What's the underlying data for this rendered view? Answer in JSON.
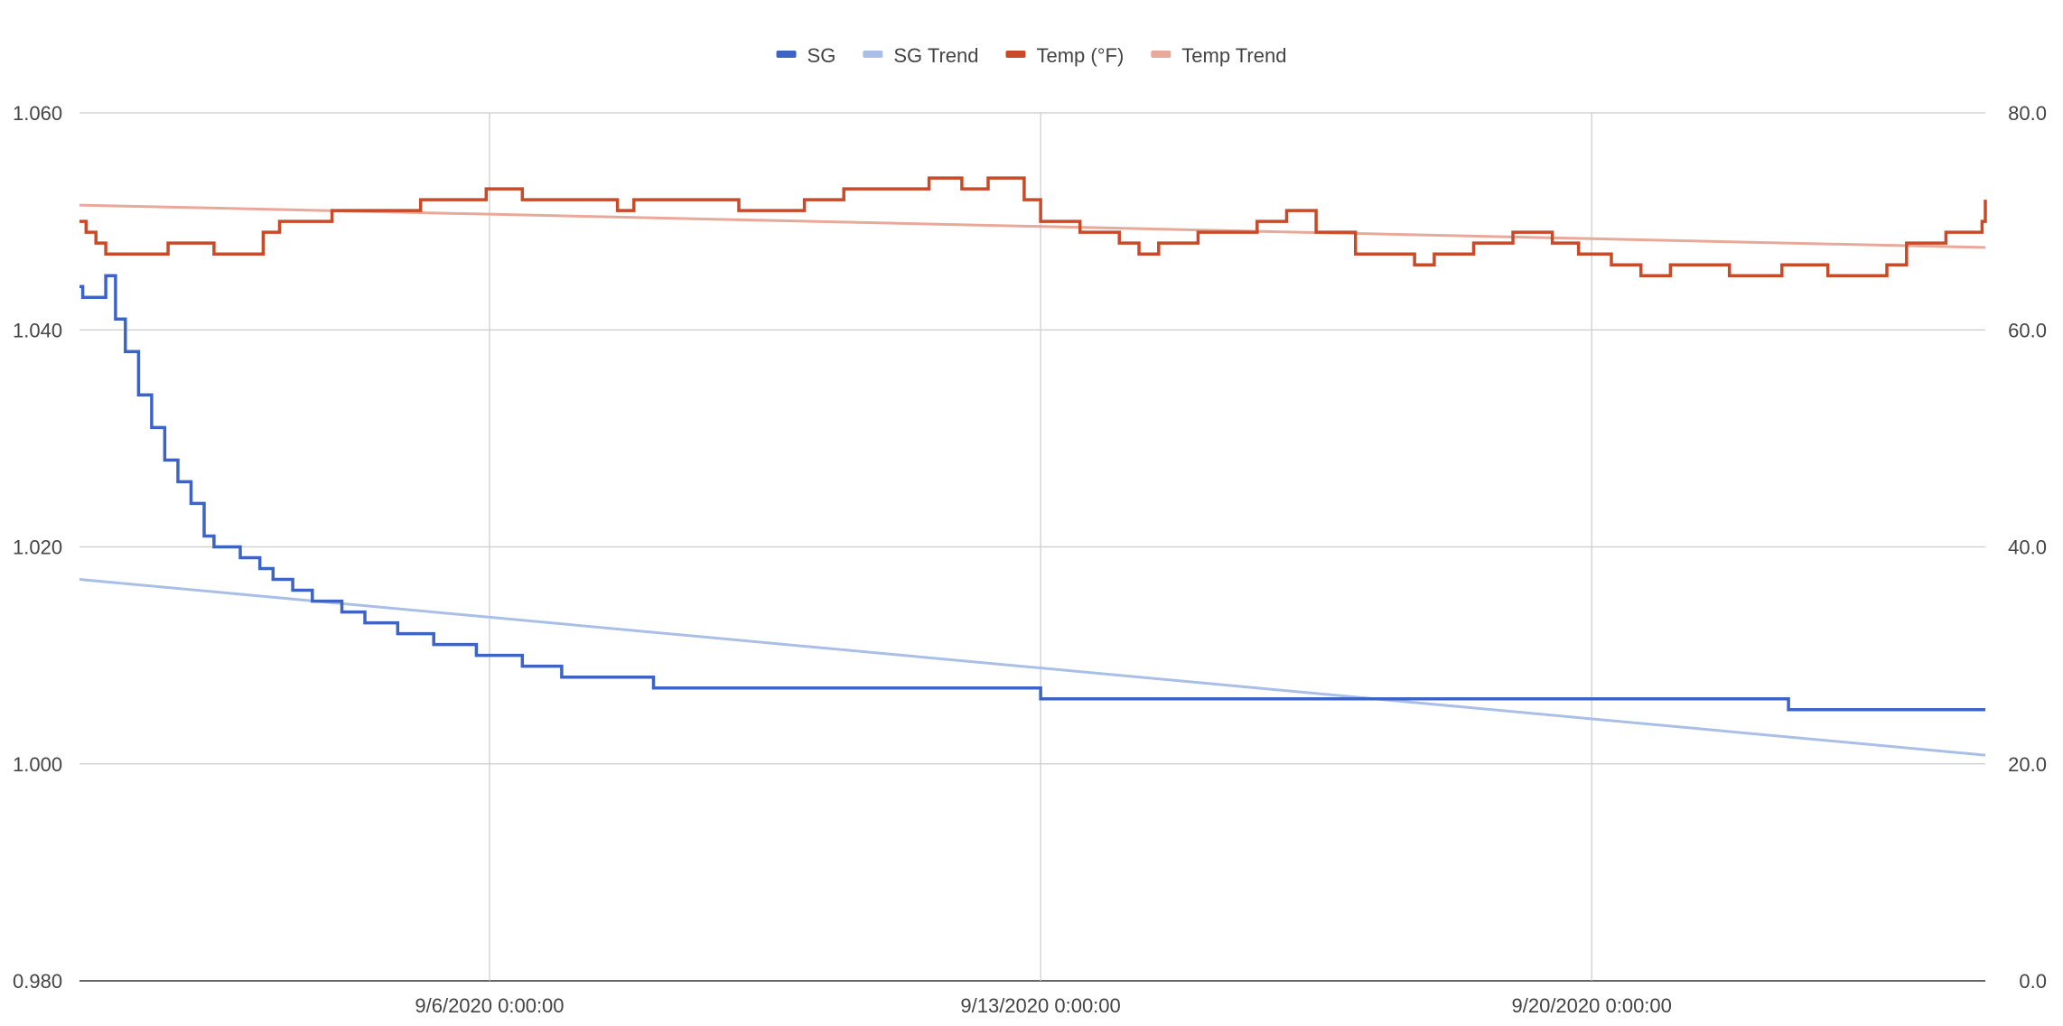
{
  "chart_data": {
    "type": "line",
    "title": "",
    "xlabel": "",
    "ylabel": "",
    "y2label": "",
    "legend_position": "top",
    "grid": true,
    "x_range": [
      "2020-08-31 19:00",
      "2020-09-25 00:00"
    ],
    "y_left": {
      "min": 0.98,
      "max": 1.06,
      "ticks": [
        "1.060",
        "1.040",
        "1.020",
        "1.000",
        "0.980"
      ]
    },
    "y_right": {
      "min": 0,
      "max": 80,
      "ticks": [
        "80.0",
        "60.0",
        "40.0",
        "20.0",
        "0.0"
      ]
    },
    "x_ticks": [
      {
        "date": "2020-09-06 00:00",
        "label": "9/6/2020 0:00:00"
      },
      {
        "date": "2020-09-13 00:00",
        "label": "9/13/2020 0:00:00"
      },
      {
        "date": "2020-09-20 00:00",
        "label": "9/20/2020 0:00:00"
      }
    ],
    "series": [
      {
        "name": "SG",
        "axis": "left",
        "color": "#3d64c4",
        "points": [
          [
            "2020-08-31 19:00",
            1.044
          ],
          [
            "2020-08-31 20:00",
            1.043
          ],
          [
            "2020-09-01 02:00",
            1.043
          ],
          [
            "2020-09-01 03:00",
            1.045
          ],
          [
            "2020-09-01 06:00",
            1.041
          ],
          [
            "2020-09-01 09:00",
            1.038
          ],
          [
            "2020-09-01 13:00",
            1.034
          ],
          [
            "2020-09-01 17:00",
            1.031
          ],
          [
            "2020-09-01 21:00",
            1.028
          ],
          [
            "2020-09-02 01:00",
            1.026
          ],
          [
            "2020-09-02 05:00",
            1.024
          ],
          [
            "2020-09-02 09:00",
            1.021
          ],
          [
            "2020-09-02 12:00",
            1.02
          ],
          [
            "2020-09-02 18:00",
            1.02
          ],
          [
            "2020-09-02 20:00",
            1.019
          ],
          [
            "2020-09-03 02:00",
            1.018
          ],
          [
            "2020-09-03 06:00",
            1.017
          ],
          [
            "2020-09-03 12:00",
            1.016
          ],
          [
            "2020-09-03 18:00",
            1.015
          ],
          [
            "2020-09-04 03:00",
            1.014
          ],
          [
            "2020-09-04 10:00",
            1.013
          ],
          [
            "2020-09-04 20:00",
            1.012
          ],
          [
            "2020-09-05 07:00",
            1.011
          ],
          [
            "2020-09-05 20:00",
            1.01
          ],
          [
            "2020-09-06 10:00",
            1.009
          ],
          [
            "2020-09-06 22:00",
            1.008
          ],
          [
            "2020-09-07 14:00",
            1.008
          ],
          [
            "2020-09-08 02:00",
            1.007
          ],
          [
            "2020-09-10 00:00",
            1.007
          ],
          [
            "2020-09-13 00:00",
            1.006
          ],
          [
            "2020-09-17 00:00",
            1.006
          ],
          [
            "2020-09-20 00:00",
            1.006
          ],
          [
            "2020-09-22 12:00",
            1.005
          ],
          [
            "2020-09-25 00:00",
            1.005
          ]
        ]
      },
      {
        "name": "SG Trend",
        "axis": "left",
        "color": "#a9bfe8",
        "points": [
          [
            "2020-08-31 19:00",
            1.017
          ],
          [
            "2020-09-25 00:00",
            1.0008
          ]
        ]
      },
      {
        "name": "Temp (°F)",
        "axis": "right",
        "color": "#c84a29",
        "points": [
          [
            "2020-08-31 19:00",
            70
          ],
          [
            "2020-08-31 21:00",
            69
          ],
          [
            "2020-09-01 00:00",
            68
          ],
          [
            "2020-09-01 03:00",
            67
          ],
          [
            "2020-09-01 22:00",
            68
          ],
          [
            "2020-09-02 12:00",
            67
          ],
          [
            "2020-09-03 03:00",
            69
          ],
          [
            "2020-09-03 08:00",
            70
          ],
          [
            "2020-09-04 00:00",
            71
          ],
          [
            "2020-09-05 03:00",
            72
          ],
          [
            "2020-09-05 23:00",
            73
          ],
          [
            "2020-09-06 10:00",
            72
          ],
          [
            "2020-09-07 15:00",
            71
          ],
          [
            "2020-09-07 20:00",
            72
          ],
          [
            "2020-09-09 04:00",
            71
          ],
          [
            "2020-09-10 00:00",
            72
          ],
          [
            "2020-09-10 12:00",
            73
          ],
          [
            "2020-09-11 14:00",
            74
          ],
          [
            "2020-09-12 00:00",
            73
          ],
          [
            "2020-09-12 08:00",
            74
          ],
          [
            "2020-09-12 19:00",
            72
          ],
          [
            "2020-09-13 00:00",
            70
          ],
          [
            "2020-09-13 12:00",
            69
          ],
          [
            "2020-09-14 00:00",
            68
          ],
          [
            "2020-09-14 06:00",
            67
          ],
          [
            "2020-09-14 12:00",
            68
          ],
          [
            "2020-09-15 00:00",
            69
          ],
          [
            "2020-09-15 18:00",
            70
          ],
          [
            "2020-09-16 03:00",
            71
          ],
          [
            "2020-09-16 12:00",
            69
          ],
          [
            "2020-09-17 00:00",
            67
          ],
          [
            "2020-09-17 18:00",
            66
          ],
          [
            "2020-09-18 00:00",
            67
          ],
          [
            "2020-09-18 12:00",
            68
          ],
          [
            "2020-09-19 00:00",
            69
          ],
          [
            "2020-09-19 12:00",
            68
          ],
          [
            "2020-09-19 20:00",
            67
          ],
          [
            "2020-09-20 06:00",
            66
          ],
          [
            "2020-09-20 15:00",
            65
          ],
          [
            "2020-09-21 00:00",
            66
          ],
          [
            "2020-09-21 18:00",
            65
          ],
          [
            "2020-09-22 10:00",
            66
          ],
          [
            "2020-09-23 00:00",
            65
          ],
          [
            "2020-09-23 18:00",
            66
          ],
          [
            "2020-09-24 00:00",
            68
          ],
          [
            "2020-09-24 12:00",
            69
          ],
          [
            "2020-09-24 23:00",
            70
          ],
          [
            "2020-09-25 00:00",
            72
          ]
        ]
      },
      {
        "name": "Temp Trend",
        "axis": "right",
        "color": "#e8a99a",
        "points": [
          [
            "2020-08-31 19:00",
            71.5
          ],
          [
            "2020-09-25 00:00",
            67.6
          ]
        ]
      }
    ]
  }
}
